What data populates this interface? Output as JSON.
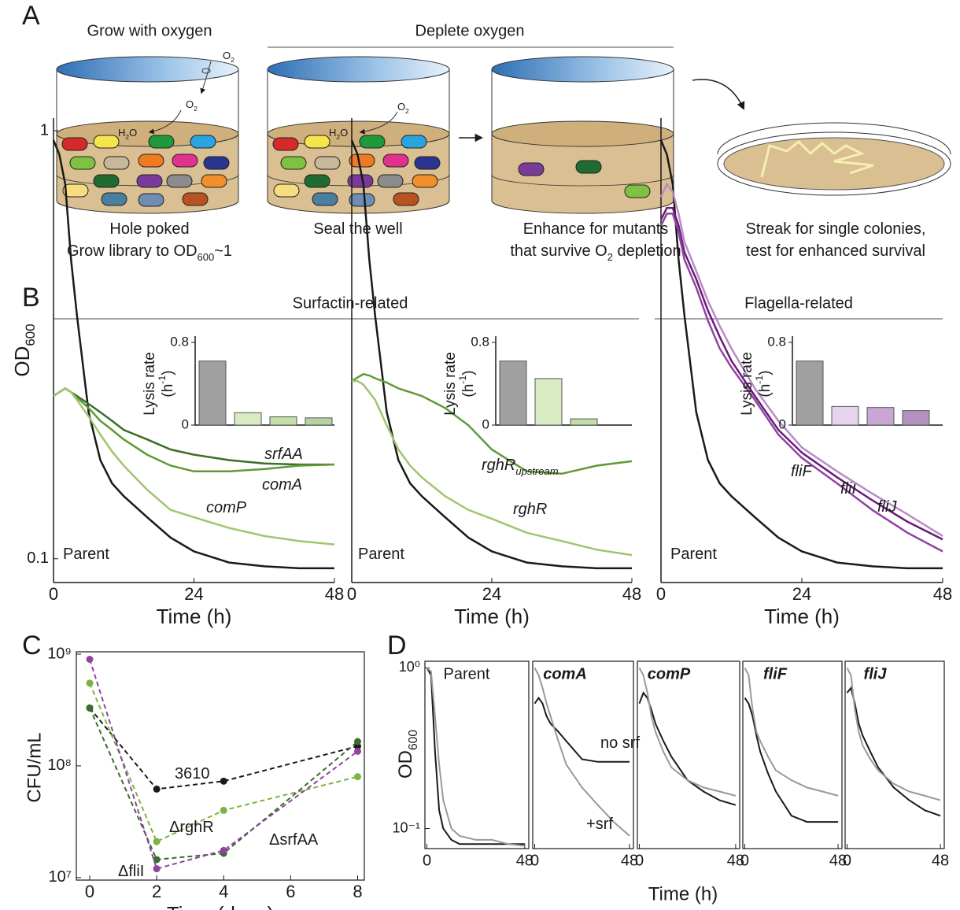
{
  "panel_labels": [
    "A",
    "B",
    "C",
    "D"
  ],
  "panel_a": {
    "step1_title": "Grow with oxygen",
    "step2_title": "Deplete oxygen",
    "o2": [
      "O",
      "2"
    ],
    "h2o": [
      "H",
      "2",
      "O"
    ],
    "caption1": [
      [
        "Hole poked"
      ],
      [
        "Grow library to OD",
        "600",
        "~1"
      ]
    ],
    "caption2": [
      [
        "Seal the well"
      ]
    ],
    "caption3": [
      [
        "Enhance for mutants"
      ],
      [
        "that survive O",
        "2",
        " depletion"
      ]
    ],
    "caption4": [
      [
        "Streak for single colonies,"
      ],
      [
        "test for enhanced survival"
      ]
    ]
  },
  "panel_b": {
    "group1": "Surfactin-related",
    "group2": "Flagella-related"
  },
  "panel_d": {
    "x_label": "Time (h)",
    "y_label": [
      "OD",
      "600"
    ]
  },
  "chart_data": [
    {
      "type": "line",
      "log_y": true,
      "x_label": "Time (h)",
      "y_label": [
        "OD",
        "600"
      ],
      "xlim": [
        0,
        48
      ],
      "xticks": [
        0,
        24,
        48
      ],
      "ylim": [
        0.088,
        1.07
      ],
      "yticks": [
        0.1,
        1
      ],
      "x": [
        0,
        1,
        2,
        3,
        4,
        6,
        8,
        10,
        12,
        16,
        20,
        24,
        30,
        36,
        42,
        48
      ],
      "series": [
        {
          "name": "Parent",
          "color": "#1a1a1a",
          "values": [
            0.95,
            0.88,
            0.75,
            0.5,
            0.37,
            0.22,
            0.17,
            0.15,
            0.14,
            0.125,
            0.112,
            0.104,
            0.098,
            0.096,
            0.095,
            0.095
          ]
        },
        {
          "name": "srfAA",
          "color": "#3a6e2a",
          "values": [
            0.24,
            0.245,
            0.25,
            0.245,
            0.24,
            0.23,
            0.22,
            0.21,
            0.2,
            0.19,
            0.18,
            0.175,
            0.17,
            0.167,
            0.166,
            0.166
          ]
        },
        {
          "name": "comA",
          "color": "#5f9a36",
          "values": [
            0.24,
            0.245,
            0.25,
            0.245,
            0.238,
            0.225,
            0.21,
            0.2,
            0.19,
            0.175,
            0.165,
            0.16,
            0.16,
            0.162,
            0.165,
            0.166
          ]
        },
        {
          "name": "comP",
          "color": "#9fc66e",
          "values": [
            0.24,
            0.245,
            0.25,
            0.245,
            0.235,
            0.215,
            0.195,
            0.178,
            0.165,
            0.145,
            0.13,
            0.125,
            0.118,
            0.113,
            0.11,
            0.108
          ]
        }
      ],
      "inset": {
        "type": "bar",
        "y_label": "Lysis rate",
        "y_unit": [
          "(h",
          "-1",
          ")"
        ],
        "ylim": [
          0,
          0.8
        ],
        "yticks": [
          0,
          0.8
        ],
        "values": [
          0.62,
          0.12,
          0.08,
          0.07
        ],
        "colors": [
          "#a0a0a0",
          "#d8ebc4",
          "#c3dea6",
          "#b5d2a0"
        ]
      }
    },
    {
      "type": "line",
      "log_y": true,
      "x_label": "Time (h)",
      "xlim": [
        0,
        48
      ],
      "xticks": [
        0,
        24,
        48
      ],
      "ylim": [
        0.088,
        1.07
      ],
      "x": [
        0,
        1,
        2,
        3,
        4,
        6,
        8,
        10,
        12,
        16,
        20,
        24,
        30,
        36,
        42,
        48
      ],
      "series": [
        {
          "name": "Parent",
          "color": "#1a1a1a",
          "values": [
            0.95,
            0.88,
            0.75,
            0.5,
            0.37,
            0.22,
            0.17,
            0.15,
            0.14,
            0.125,
            0.112,
            0.104,
            0.098,
            0.096,
            0.095,
            0.095
          ]
        },
        {
          "name": "rghR",
          "name_sub": "upstream",
          "color": "#5f9a36",
          "values": [
            0.26,
            0.265,
            0.27,
            0.268,
            0.264,
            0.258,
            0.25,
            0.245,
            0.24,
            0.225,
            0.205,
            0.18,
            0.16,
            0.158,
            0.165,
            0.169
          ]
        },
        {
          "name": "rghR",
          "color": "#9fc66e",
          "values": [
            0.26,
            0.26,
            0.255,
            0.245,
            0.235,
            0.205,
            0.18,
            0.165,
            0.155,
            0.14,
            0.13,
            0.124,
            0.115,
            0.11,
            0.105,
            0.102
          ]
        }
      ],
      "inset": {
        "type": "bar",
        "y_label": "Lysis rate",
        "y_unit": [
          "(h",
          "-1",
          ")"
        ],
        "ylim": [
          0,
          0.8
        ],
        "yticks": [
          0,
          0.8
        ],
        "values": [
          0.62,
          0.45,
          0.06
        ],
        "colors": [
          "#a0a0a0",
          "#d8ebc4",
          "#c3dea6"
        ]
      }
    },
    {
      "type": "line",
      "log_y": true,
      "x_label": "Time (h)",
      "xlim": [
        0,
        48
      ],
      "xticks": [
        0,
        24,
        48
      ],
      "ylim": [
        0.088,
        1.07
      ],
      "x": [
        0,
        1,
        2,
        3,
        4,
        6,
        8,
        10,
        12,
        16,
        20,
        24,
        30,
        36,
        42,
        48
      ],
      "series": [
        {
          "name": "Parent",
          "color": "#1a1a1a",
          "values": [
            0.95,
            0.88,
            0.75,
            0.5,
            0.37,
            0.22,
            0.17,
            0.15,
            0.14,
            0.125,
            0.112,
            0.104,
            0.098,
            0.096,
            0.095,
            0.095
          ]
        },
        {
          "name": "fliF",
          "color": "#6a1b7a",
          "values": [
            0.62,
            0.66,
            0.66,
            0.6,
            0.52,
            0.45,
            0.38,
            0.33,
            0.29,
            0.24,
            0.2,
            0.177,
            0.155,
            0.137,
            0.122,
            0.111
          ]
        },
        {
          "name": "fliI",
          "color": "#8e44a0",
          "values": [
            0.6,
            0.64,
            0.64,
            0.58,
            0.5,
            0.43,
            0.36,
            0.31,
            0.28,
            0.235,
            0.195,
            0.172,
            0.15,
            0.13,
            0.115,
            0.104
          ]
        },
        {
          "name": "fliJ",
          "color": "#b98bc8",
          "values": [
            0.7,
            0.75,
            0.72,
            0.64,
            0.55,
            0.47,
            0.4,
            0.35,
            0.31,
            0.25,
            0.21,
            0.182,
            0.16,
            0.142,
            0.127,
            0.113
          ]
        }
      ],
      "inset": {
        "type": "bar",
        "y_label": "Lysis rate",
        "y_unit": [
          "(h",
          "-1",
          ")"
        ],
        "ylim": [
          0,
          0.8
        ],
        "yticks": [
          0,
          0.8
        ],
        "values": [
          0.62,
          0.18,
          0.17,
          0.14
        ],
        "colors": [
          "#a0a0a0",
          "#e6d3ec",
          "#c9a6d4",
          "#b591c2"
        ]
      }
    },
    {
      "type": "line",
      "log_y": true,
      "markers": true,
      "dashed": true,
      "x_label": "Time (days)",
      "y_label": "CFU/mL",
      "xlim": [
        -0.4,
        8.2
      ],
      "xticks": [
        0,
        2,
        4,
        6,
        8
      ],
      "ylim": [
        9500000,
        1050000000
      ],
      "yticks": [
        {
          "value": 10000000,
          "label": "10⁷"
        },
        {
          "value": 100000000,
          "label": "10⁸"
        },
        {
          "value": 1000000000,
          "label": "10⁹"
        }
      ],
      "x": [
        0,
        2,
        4,
        8
      ],
      "series": [
        {
          "name": "3610",
          "color": "#1a1a1a",
          "values": [
            330000000,
            62000000,
            73000000,
            150000000
          ]
        },
        {
          "name": "ΔrghR",
          "color": "#7cb342",
          "values": [
            550000000,
            21000000,
            40000000,
            80000000
          ]
        },
        {
          "name": "ΔsrfAA",
          "color": "#3a6e2a",
          "values": [
            330000000,
            14500000,
            16500000,
            165000000
          ]
        },
        {
          "name": "ΔfliI",
          "color": "#8e44a0",
          "values": [
            900000000,
            12000000,
            17500000,
            135000000
          ]
        }
      ]
    },
    {
      "type": "line",
      "log_y": true,
      "title": "Parent",
      "title_color": "#1a1a1a",
      "xlim": [
        -1,
        50
      ],
      "xticks": [
        0,
        48
      ],
      "ylim": [
        0.075,
        1.1
      ],
      "yticks": [
        {
          "value": 0.1,
          "label": "10⁻¹"
        },
        {
          "value": 1,
          "label": "10⁰"
        }
      ],
      "x": [
        0,
        2,
        4,
        6,
        8,
        12,
        16,
        24,
        32,
        40,
        48
      ],
      "series": [
        {
          "color": "#1a1a1a",
          "values": [
            1,
            0.9,
            0.3,
            0.13,
            0.1,
            0.085,
            0.08,
            0.08,
            0.08,
            0.08,
            0.08
          ]
        },
        {
          "color": "#999999",
          "values": [
            1,
            0.95,
            0.5,
            0.25,
            0.15,
            0.1,
            0.09,
            0.085,
            0.085,
            0.08,
            0.078
          ]
        }
      ]
    },
    {
      "type": "line",
      "log_y": true,
      "title": "comA",
      "title_color": "#5f9a36",
      "xlim": [
        -1,
        50
      ],
      "xticks": [
        0,
        48
      ],
      "ylim": [
        0.075,
        1.1
      ],
      "x": [
        0,
        2,
        4,
        6,
        8,
        12,
        16,
        24,
        32,
        40,
        48
      ],
      "series": [
        {
          "name": "no srf",
          "color": "#1a1a1a",
          "values": [
            0.6,
            0.65,
            0.6,
            0.5,
            0.45,
            0.4,
            0.35,
            0.27,
            0.26,
            0.26,
            0.26
          ]
        },
        {
          "name": "+srf",
          "color": "#999999",
          "values": [
            1,
            0.9,
            0.75,
            0.6,
            0.5,
            0.35,
            0.25,
            0.18,
            0.14,
            0.11,
            0.09
          ]
        }
      ]
    },
    {
      "type": "line",
      "log_y": true,
      "title": "comP",
      "title_color": "#9fc66e",
      "xlim": [
        -1,
        50
      ],
      "xticks": [
        0,
        48
      ],
      "ylim": [
        0.075,
        1.1
      ],
      "x": [
        0,
        2,
        4,
        6,
        8,
        12,
        16,
        24,
        32,
        40,
        48
      ],
      "series": [
        {
          "color": "#1a1a1a",
          "values": [
            0.6,
            0.7,
            0.65,
            0.55,
            0.45,
            0.35,
            0.28,
            0.2,
            0.17,
            0.15,
            0.14
          ]
        },
        {
          "color": "#999999",
          "values": [
            1,
            0.9,
            0.7,
            0.5,
            0.4,
            0.3,
            0.24,
            0.2,
            0.18,
            0.17,
            0.16
          ]
        }
      ]
    },
    {
      "type": "line",
      "log_y": true,
      "title": "fliF",
      "title_color": "#6a1b7a",
      "xlim": [
        -1,
        50
      ],
      "xticks": [
        0,
        48
      ],
      "ylim": [
        0.075,
        1.1
      ],
      "x": [
        0,
        2,
        4,
        6,
        8,
        12,
        16,
        24,
        32,
        40,
        48
      ],
      "series": [
        {
          "color": "#1a1a1a",
          "values": [
            0.65,
            0.6,
            0.5,
            0.38,
            0.3,
            0.22,
            0.17,
            0.12,
            0.11,
            0.11,
            0.11
          ]
        },
        {
          "color": "#999999",
          "values": [
            1,
            0.9,
            0.55,
            0.4,
            0.35,
            0.28,
            0.23,
            0.2,
            0.18,
            0.17,
            0.16
          ]
        }
      ]
    },
    {
      "type": "line",
      "log_y": true,
      "title": "fliJ",
      "title_color": "#b98bc8",
      "xlim": [
        -1,
        50
      ],
      "xticks": [
        0,
        48
      ],
      "ylim": [
        0.075,
        1.1
      ],
      "x": [
        0,
        2,
        4,
        6,
        8,
        12,
        16,
        24,
        32,
        40,
        48
      ],
      "series": [
        {
          "color": "#1a1a1a",
          "values": [
            0.7,
            0.75,
            0.6,
            0.45,
            0.38,
            0.3,
            0.24,
            0.18,
            0.15,
            0.13,
            0.12
          ]
        },
        {
          "color": "#999999",
          "values": [
            1,
            0.9,
            0.55,
            0.4,
            0.33,
            0.27,
            0.23,
            0.19,
            0.17,
            0.16,
            0.15
          ]
        }
      ]
    }
  ]
}
